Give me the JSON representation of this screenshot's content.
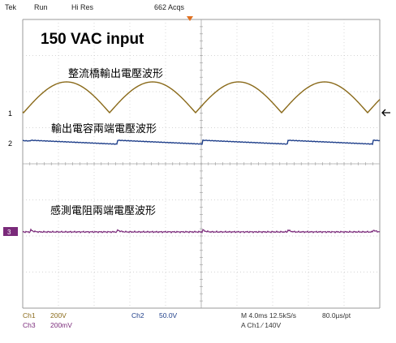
{
  "header": {
    "brand": "Tek",
    "run_state": "Run",
    "acq_mode": "Hi Res",
    "acquisitions": "662 Acqs"
  },
  "annotations": {
    "input": "150 VAC input",
    "rectified_label": "整流橋輸出電壓波形",
    "capacitor_label": "輸出電容兩端電壓波形",
    "sense_label": "感測電阻兩端電壓波形"
  },
  "channel_markers": {
    "ch1": "1",
    "ch2": "2",
    "ch3": "3"
  },
  "status": {
    "ch1_name": "Ch1",
    "ch1_scale": "200V",
    "ch2_name": "Ch2",
    "ch2_scale": "50.0V",
    "ch3_name": "Ch3",
    "ch3_scale": "200mV",
    "timebase": "M 4.0ms 12.5kS/s",
    "sample_interval": "80.0µs/pt",
    "trigger": "A  Ch1  ∕  140V"
  },
  "colors": {
    "grid_bg": "#ffffff",
    "grid_line": "#c8c8c8",
    "ch1": "#8a6a1a",
    "ch2": "#1f3f8a",
    "ch3": "#7a2a7a",
    "trigger_marker": "#e07020"
  }
}
